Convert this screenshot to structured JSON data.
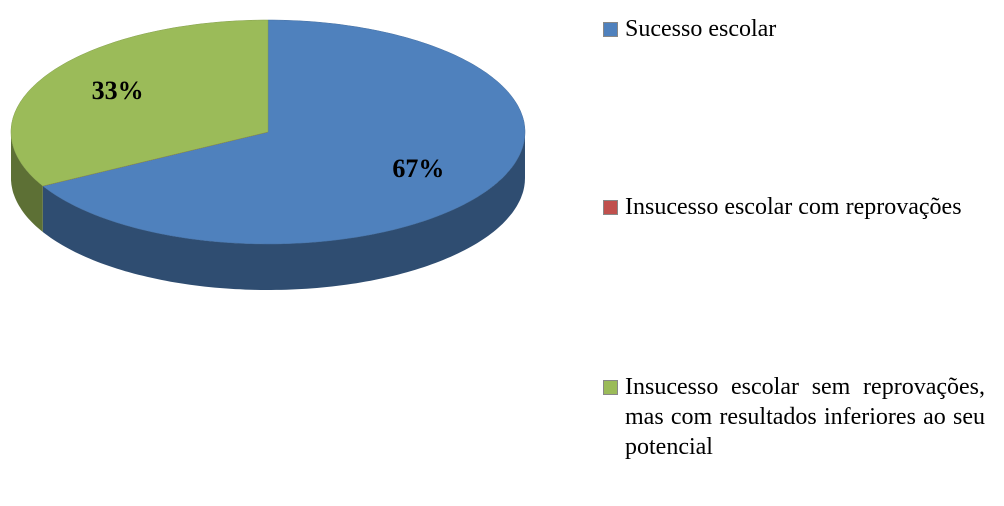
{
  "chart_data": {
    "type": "pie",
    "categories": [
      "Sucesso escolar",
      "Insucesso escolar com reprovações",
      "Insucesso escolar sem reprovações, mas com resultados inferiores ao seu potencial"
    ],
    "values": [
      67,
      0,
      33
    ],
    "value_labels": [
      "67%",
      null,
      "33%"
    ],
    "colors": [
      "#4f81bd",
      "#c0504d",
      "#9bbb59"
    ],
    "legend": "right"
  }
}
